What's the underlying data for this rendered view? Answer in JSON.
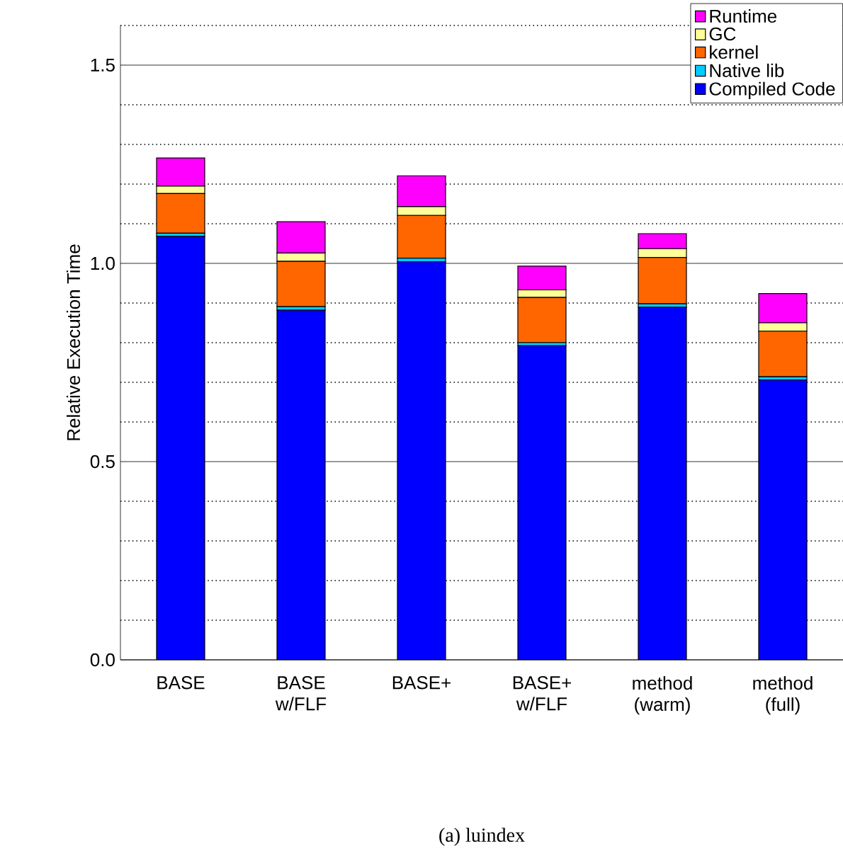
{
  "chart_data": {
    "type": "bar",
    "stacked": true,
    "ylabel": "Relative Execution Time",
    "categories": [
      "BASE",
      "BASE w/FLF",
      "BASE+",
      "BASE+ w/FLF",
      "method (warm)",
      "method (full)"
    ],
    "series": [
      {
        "name": "Compiled Code",
        "color": "#0000ff",
        "values": [
          1.068,
          0.882,
          1.004,
          0.792,
          0.889,
          0.706
        ]
      },
      {
        "name": "Native lib",
        "color": "#00ccff",
        "values": [
          0.008,
          0.009,
          0.009,
          0.008,
          0.009,
          0.008
        ]
      },
      {
        "name": "kernel",
        "color": "#ff6600",
        "values": [
          0.1,
          0.114,
          0.108,
          0.114,
          0.117,
          0.115
        ]
      },
      {
        "name": "GC",
        "color": "#ffff99",
        "values": [
          0.019,
          0.021,
          0.022,
          0.019,
          0.022,
          0.021
        ]
      },
      {
        "name": "Runtime",
        "color": "#ff00ff",
        "values": [
          0.071,
          0.079,
          0.078,
          0.06,
          0.038,
          0.074
        ]
      }
    ],
    "ylim": [
      0,
      1.6
    ],
    "yticks": [
      {
        "value": 0,
        "label": "0.0"
      },
      {
        "value": 0.5,
        "label": "0.5"
      },
      {
        "value": 1.0,
        "label": "1.0"
      },
      {
        "value": 1.5,
        "label": "1.5"
      }
    ],
    "grid": "y",
    "legend": "top right",
    "annotations": [
      "(a) luindex"
    ]
  }
}
